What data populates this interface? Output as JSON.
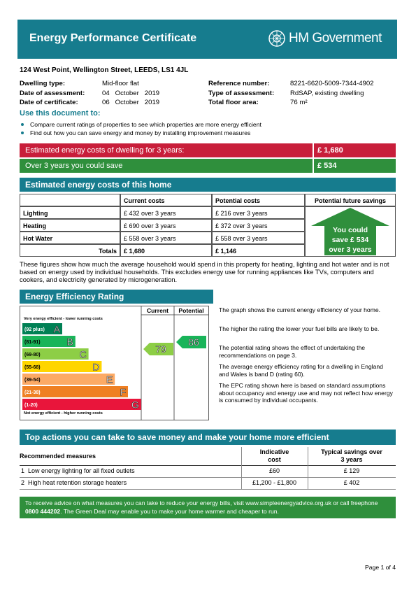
{
  "header": {
    "title": "Energy Performance Certificate",
    "logo": "HM Government"
  },
  "address": "124 West Point, Wellington Street, LEEDS, LS1 4JL",
  "details": {
    "left": [
      [
        "Dwelling type:",
        "Mid-floor flat"
      ],
      [
        "Date of assessment:",
        "04   October   2019"
      ],
      [
        "Date of certificate:",
        "06   October   2019"
      ]
    ],
    "right": [
      [
        "Reference number:",
        "8221-6620-5009-7344-4902"
      ],
      [
        "Type of assessment:",
        "RdSAP, existing dwelling"
      ],
      [
        "Total floor area:",
        "76 m²"
      ]
    ]
  },
  "use": {
    "heading": "Use this document to:",
    "bullets": [
      "Compare current ratings of properties to see which properties are more energy efficient",
      "Find out how you can save energy and money by installing improvement measures"
    ]
  },
  "cost_bars": [
    [
      "Estimated energy costs of dwelling for 3 years:",
      "£ 1,680"
    ],
    [
      "Over 3 years you could save",
      "£ 534"
    ]
  ],
  "costs": {
    "heading": "Estimated energy costs of this home",
    "columns": [
      "Current costs",
      "Potential costs",
      "Potential future savings"
    ],
    "rows": [
      [
        "Lighting",
        "£ 432 over 3 years",
        "£ 216 over 3 years"
      ],
      [
        "Heating",
        "£ 690 over 3 years",
        "£ 372 over 3 years"
      ],
      [
        "Hot Water",
        "£ 558 over 3 years",
        "£ 558 over 3 years"
      ]
    ],
    "totals": [
      "Totals",
      "£ 1,680",
      "£ 1,146"
    ],
    "savings_arrow": [
      "You could",
      "save £ 534",
      "over 3 years"
    ],
    "note": "These figures show how much the average household would spend in this property for heating, lighting and hot water and is not based on energy used by individual households. This excludes energy use for running appliances like TVs, computers and cookers, and electricity generated by microgeneration."
  },
  "rating": {
    "heading": "Energy Efficiency Rating",
    "columns": [
      "Current",
      "Potential"
    ],
    "top_note": "Very energy efficient - lower running costs",
    "bottom_note": "Not energy efficient - higher running costs",
    "bands": [
      {
        "range": "(92 plus)",
        "letter": "A",
        "color": "#008054"
      },
      {
        "range": "(81-91)",
        "letter": "B",
        "color": "#19b459"
      },
      {
        "range": "(69-80)",
        "letter": "C",
        "color": "#8dce46"
      },
      {
        "range": "(55-68)",
        "letter": "D",
        "color": "#ffd500"
      },
      {
        "range": "(39-54)",
        "letter": "E",
        "color": "#fcaa65"
      },
      {
        "range": "(21-38)",
        "letter": "F",
        "color": "#ef8023"
      },
      {
        "range": "(1-20)",
        "letter": "G",
        "color": "#e9153b"
      }
    ],
    "current": "79",
    "potential": "86",
    "paragraphs": [
      "The graph shows the current energy efficiency of your home.",
      "The higher the rating the lower your fuel bills are likely to be.",
      "The potential rating shows the effect of undertaking the recommendations on page 3.",
      "The average energy efficiency rating for a dwelling in England and Wales is band D (rating 60).",
      "The EPC rating shown here is based on standard assumptions about occupancy and energy use and may not reflect how energy is consumed by individual occupants."
    ]
  },
  "actions": {
    "heading": "Top actions you can take to save money and make your home more efficient",
    "columns": [
      "Recommended measures",
      "Indicative cost",
      "Typical savings over 3 years"
    ],
    "rows": [
      [
        "1",
        "Low energy lighting for all fixed outlets",
        "£60",
        "£ 129"
      ],
      [
        "2",
        "High heat retention storage heaters",
        "£1,200 - £1,800",
        "£ 402"
      ]
    ]
  },
  "footer": {
    "before": "To receive advice on what measures you can take to reduce your energy bills, visit www.simpleenergyadvice.org.uk or call freephone",
    "phone": "0800 444202",
    "after": ". The Green Deal may enable you to make your home warmer and cheaper to run."
  },
  "page": "Page 1 of 4"
}
